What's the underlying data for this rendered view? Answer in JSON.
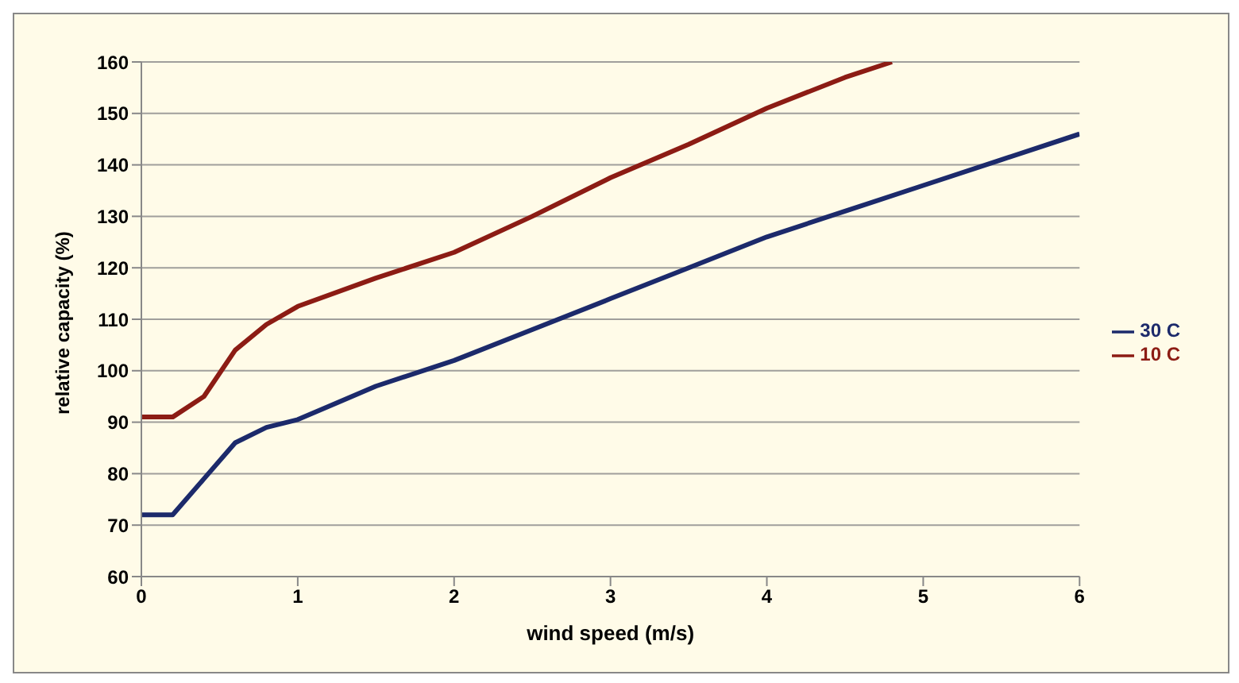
{
  "chart_data": {
    "type": "line",
    "xlabel": "wind speed (m/s)",
    "ylabel": "relative capacity (%)",
    "xlim": [
      0,
      6
    ],
    "xticks": [
      0,
      1,
      2,
      3,
      4,
      5,
      6
    ],
    "ylim": [
      60,
      160
    ],
    "yticks": [
      60,
      70,
      80,
      90,
      100,
      110,
      120,
      130,
      140,
      150,
      160
    ],
    "grid": "y",
    "legend": "right",
    "marker": "none",
    "line_style": "solid",
    "series": [
      {
        "name": "30 C",
        "color": "#1c2a6b",
        "x": [
          0,
          0.2,
          0.4,
          0.6,
          0.8,
          1,
          1.5,
          2,
          2.5,
          3,
          3.5,
          4,
          4.5,
          5,
          5.5,
          6
        ],
        "values": [
          72,
          72,
          79,
          86,
          89,
          90.5,
          97,
          102,
          108,
          114,
          120,
          126,
          131,
          136,
          141,
          146
        ]
      },
      {
        "name": "10 C",
        "color": "#8c1c14",
        "x": [
          0,
          0.2,
          0.4,
          0.6,
          0.8,
          1,
          1.5,
          2,
          2.5,
          3,
          3.5,
          4,
          4.5,
          4.8
        ],
        "values": [
          91,
          91,
          95,
          104,
          109,
          112.5,
          118,
          123,
          130,
          137.5,
          144,
          151,
          157,
          160
        ]
      }
    ]
  }
}
